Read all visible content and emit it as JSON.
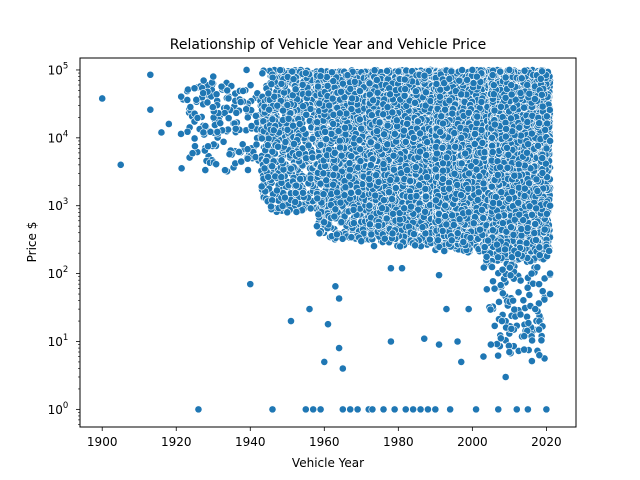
{
  "chart_data": {
    "type": "scatter",
    "title": "Relationship of Vehicle Year and Vehicle Price",
    "xlabel": "Vehicle Year",
    "ylabel": "Price $",
    "xlim": [
      1894,
      2028
    ],
    "ylim": [
      0.55,
      150000
    ],
    "yscale": "log",
    "grid": false,
    "marker_color": "#1f77b4",
    "x_ticks": [
      {
        "value": 1900,
        "label": "1900"
      },
      {
        "value": 1920,
        "label": "1920"
      },
      {
        "value": 1940,
        "label": "1940"
      },
      {
        "value": 1960,
        "label": "1960"
      },
      {
        "value": 1980,
        "label": "1980"
      },
      {
        "value": 2000,
        "label": "2000"
      },
      {
        "value": 2020,
        "label": "2020"
      }
    ],
    "y_ticks": [
      {
        "value": 1,
        "base": "10",
        "exp": "0"
      },
      {
        "value": 10,
        "base": "10",
        "exp": "1"
      },
      {
        "value": 100,
        "base": "10",
        "exp": "2"
      },
      {
        "value": 1000,
        "base": "10",
        "exp": "3"
      },
      {
        "value": 10000,
        "base": "10",
        "exp": "4"
      },
      {
        "value": 100000,
        "base": "10",
        "exp": "5"
      }
    ],
    "points": [
      [
        1900,
        38000
      ],
      [
        1905,
        4000
      ],
      [
        1913,
        85000
      ],
      [
        1913,
        26000
      ],
      [
        1916,
        12000
      ],
      [
        1918,
        16000
      ],
      [
        1926,
        1
      ],
      [
        1940,
        70
      ],
      [
        1946,
        1
      ],
      [
        1950,
        800
      ],
      [
        1951,
        20
      ],
      [
        1955,
        1
      ],
      [
        1956,
        30
      ],
      [
        1957,
        1
      ],
      [
        1958,
        500
      ],
      [
        1959,
        1
      ],
      [
        1960,
        5
      ],
      [
        1961,
        18
      ],
      [
        1963,
        65
      ],
      [
        1964,
        43
      ],
      [
        1964,
        8
      ],
      [
        1965,
        4
      ],
      [
        1965,
        1
      ],
      [
        1967,
        1
      ],
      [
        1969,
        1
      ],
      [
        1970,
        300
      ],
      [
        1972,
        1
      ],
      [
        1973,
        1
      ],
      [
        1976,
        1
      ],
      [
        1978,
        120
      ],
      [
        1978,
        10
      ],
      [
        1979,
        1
      ],
      [
        1981,
        120
      ],
      [
        1982,
        1
      ],
      [
        1984,
        1
      ],
      [
        1986,
        1
      ],
      [
        1987,
        11
      ],
      [
        1988,
        1
      ],
      [
        1990,
        1
      ],
      [
        1991,
        95
      ],
      [
        1991,
        9
      ],
      [
        1993,
        30
      ],
      [
        1994,
        1
      ],
      [
        1996,
        10
      ],
      [
        1997,
        5
      ],
      [
        1999,
        30
      ],
      [
        2001,
        1
      ],
      [
        2003,
        6
      ],
      [
        2005,
        9
      ],
      [
        2006,
        60
      ],
      [
        2007,
        1
      ],
      [
        2008,
        20
      ],
      [
        2009,
        3
      ],
      [
        2010,
        7
      ],
      [
        2011,
        40
      ],
      [
        2012,
        1
      ],
      [
        2013,
        25
      ],
      [
        2014,
        12
      ],
      [
        2015,
        1
      ],
      [
        2016,
        100
      ],
      [
        2017,
        30
      ],
      [
        2018,
        15
      ],
      [
        2019,
        55
      ],
      [
        2020,
        1
      ],
      [
        2021,
        50
      ],
      [
        1939,
        100000
      ],
      [
        1930,
        80000
      ],
      [
        1955,
        90000
      ],
      [
        1980,
        95000
      ],
      [
        2010,
        100000
      ],
      [
        2021,
        9000
      ],
      [
        2021,
        1000
      ],
      [
        2021,
        100
      ],
      [
        2000,
        100000
      ],
      [
        1999,
        800
      ]
    ],
    "clusters": [
      {
        "x": [
          1921,
          1943
        ],
        "logy": [
          3.5,
          4.85
        ],
        "count": 170
      },
      {
        "x": [
          1943,
          1958
        ],
        "logy": [
          2.9,
          5.0
        ],
        "count": 650
      },
      {
        "x": [
          1958,
          1972
        ],
        "logy": [
          2.5,
          5.0
        ],
        "count": 1100
      },
      {
        "x": [
          1972,
          1990
        ],
        "logy": [
          2.4,
          5.0
        ],
        "count": 1900
      },
      {
        "x": [
          1990,
          2005
        ],
        "logy": [
          2.3,
          5.0
        ],
        "count": 2400
      },
      {
        "x": [
          2005,
          2021
        ],
        "logy": [
          2.2,
          5.0
        ],
        "count": 2800
      },
      {
        "x": [
          2003,
          2021
        ],
        "logy": [
          1.3,
          2.5
        ],
        "count": 110
      },
      {
        "x": [
          2006,
          2020
        ],
        "logy": [
          0.7,
          1.3
        ],
        "count": 40
      }
    ]
  }
}
